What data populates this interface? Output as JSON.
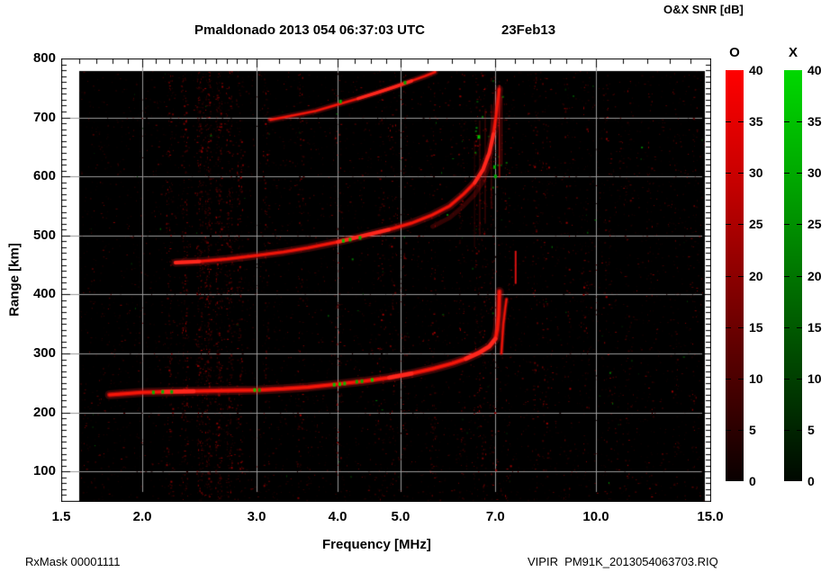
{
  "header": {
    "title": "Pmaldonado 2013 054 06:37:03 UTC",
    "date": "23Feb13",
    "colorbar_title": "O&X SNR [dB]"
  },
  "footer": {
    "left": "RxMask 00001111",
    "right": "VIPIR  PM91K_2013054063703.RIQ"
  },
  "axes": {
    "x": {
      "label": "Frequency [MHz]",
      "scale": "log",
      "min": 1.5,
      "max": 15,
      "tick_labels": [
        "1.5",
        "2.0",
        "3.0",
        "4.0",
        "5.0",
        "7.0",
        "10.0",
        "15.0"
      ],
      "tick_values": [
        1.5,
        2,
        3,
        4,
        5,
        7,
        10,
        15
      ],
      "gridlines": [
        2,
        3,
        4,
        5,
        7,
        10
      ],
      "minor_ticks": [
        1.6,
        1.7,
        1.8,
        1.9,
        2.1,
        2.2,
        2.3,
        2.4,
        2.5,
        2.6,
        2.7,
        2.8,
        2.9,
        3.25,
        3.5,
        3.75,
        4.25,
        4.5,
        4.75,
        5.5,
        6,
        6.5,
        7.5,
        8,
        8.5,
        9,
        9.5,
        11,
        12,
        13,
        14
      ]
    },
    "y": {
      "label": "Range [km]",
      "min": 50,
      "max": 800,
      "tick_labels": [
        "800",
        "700",
        "600",
        "500",
        "400",
        "300",
        "200",
        "100"
      ],
      "tick_values": [
        800,
        700,
        600,
        500,
        400,
        300,
        200,
        100
      ],
      "gridlines": [
        100,
        200,
        300,
        400,
        500,
        600,
        700
      ],
      "minor_step": 10
    }
  },
  "colorbars": {
    "bars": [
      {
        "label": "O",
        "min": 0,
        "max": 40,
        "tick_step": 5,
        "tick_labels": [
          "40",
          "35",
          "30",
          "25",
          "20",
          "15",
          "10",
          "5",
          "0"
        ],
        "color_top": "#ff0000",
        "color_bottom": "#090000"
      },
      {
        "label": "X",
        "min": 0,
        "max": 40,
        "tick_step": 5,
        "tick_labels": [
          "40",
          "35",
          "30",
          "25",
          "20",
          "15",
          "10",
          "5",
          "0"
        ],
        "color_top": "#00d800",
        "color_bottom": "#000800"
      }
    ]
  },
  "chart_data": {
    "type": "heatmap",
    "title": "Pmaldonado 2013 054 06:37:03 UTC 23Feb13",
    "xlabel": "Frequency [MHz]",
    "ylabel": "Range [km]",
    "xscale": "log",
    "xlim": [
      1.5,
      15
    ],
    "ylim": [
      50,
      800
    ],
    "grid": true,
    "background": "#000000",
    "data_extent": {
      "freq_mhz": [
        1.6,
        14.85
      ],
      "range_km": [
        50,
        780
      ]
    },
    "snr_scale_db": [
      0,
      40
    ],
    "o_mode_color": "red",
    "x_mode_color": "green",
    "traces": [
      {
        "name": "F-layer 1-hop O-mode",
        "points": [
          [
            1.78,
            230
          ],
          [
            1.9,
            232
          ],
          [
            2.0,
            234
          ],
          [
            2.15,
            235
          ],
          [
            2.4,
            236
          ],
          [
            2.7,
            237
          ],
          [
            3.0,
            238
          ],
          [
            3.3,
            240
          ],
          [
            3.6,
            243
          ],
          [
            4.0,
            248
          ],
          [
            4.4,
            253
          ],
          [
            4.8,
            259
          ],
          [
            5.2,
            266
          ],
          [
            5.6,
            274
          ],
          [
            6.0,
            283
          ],
          [
            6.3,
            291
          ],
          [
            6.6,
            301
          ],
          [
            6.85,
            312
          ],
          [
            7.0,
            325
          ],
          [
            7.05,
            342
          ],
          [
            7.08,
            365
          ],
          [
            7.1,
            405
          ]
        ],
        "bright_segments": [
          [
            2.02,
            2.45
          ],
          [
            4.5,
            5.3
          ],
          [
            6.2,
            7.03
          ]
        ],
        "glow": 10,
        "mid": 5.5,
        "core": 3
      },
      {
        "name": "F-layer 1-hop X-mode cusp",
        "points": [
          [
            7.15,
            300
          ],
          [
            7.17,
            322
          ],
          [
            7.2,
            350
          ],
          [
            7.25,
            378
          ],
          [
            7.28,
            392
          ]
        ],
        "bright_segments": [],
        "glow": 5,
        "mid": 3,
        "core": 1.6
      },
      {
        "name": "F-layer 2-hop",
        "points": [
          [
            2.25,
            454
          ],
          [
            2.45,
            456
          ],
          [
            2.7,
            460
          ],
          [
            3.0,
            466
          ],
          [
            3.3,
            472
          ],
          [
            3.6,
            479
          ],
          [
            4.0,
            489
          ],
          [
            4.4,
            500
          ],
          [
            4.8,
            510
          ],
          [
            5.2,
            521
          ],
          [
            5.6,
            535
          ],
          [
            5.95,
            550
          ],
          [
            6.25,
            570
          ],
          [
            6.5,
            589
          ],
          [
            6.7,
            612
          ],
          [
            6.85,
            640
          ],
          [
            6.95,
            672
          ],
          [
            7.02,
            705
          ],
          [
            7.06,
            728
          ],
          [
            7.09,
            748
          ]
        ],
        "bright_segments": [
          [
            2.25,
            2.65
          ],
          [
            3.9,
            5.0
          ],
          [
            6.4,
            7.0
          ]
        ],
        "glow": 9,
        "mid": 4.5,
        "core": 2.4
      },
      {
        "name": "F-layer 3-hop",
        "points": [
          [
            3.15,
            696
          ],
          [
            3.4,
            703
          ],
          [
            3.7,
            711
          ],
          [
            4.0,
            722
          ],
          [
            4.3,
            732
          ],
          [
            4.6,
            742
          ],
          [
            4.9,
            752
          ],
          [
            5.2,
            762
          ],
          [
            5.45,
            770
          ],
          [
            5.65,
            777
          ]
        ],
        "bright_segments": [
          [
            4.25,
            5.3
          ]
        ],
        "glow": 7,
        "mid": 3.5,
        "core": 2
      }
    ],
    "x_mode_marks": [
      [
        2.08,
        234
      ],
      [
        2.15,
        235
      ],
      [
        2.22,
        235
      ],
      [
        2.98,
        238
      ],
      [
        3.03,
        238
      ],
      [
        3.95,
        247
      ],
      [
        4.03,
        248
      ],
      [
        4.1,
        249
      ],
      [
        4.28,
        252
      ],
      [
        4.36,
        253
      ],
      [
        4.52,
        255
      ],
      [
        4.08,
        491
      ],
      [
        4.18,
        493
      ],
      [
        4.33,
        496
      ],
      [
        4.04,
        727
      ],
      [
        5.08,
        759
      ],
      [
        7.0,
        600
      ],
      [
        6.98,
        616
      ],
      [
        6.6,
        667
      ]
    ],
    "vertical_streaks": [
      {
        "f": 7.52,
        "r0": 418,
        "r1": 474,
        "w": 2,
        "a": 0.85
      },
      {
        "f": 7.1,
        "r0": 598,
        "r1": 755,
        "w": 2,
        "a": 0.5
      },
      {
        "f": 7.16,
        "r0": 620,
        "r1": 735,
        "w": 1.5,
        "a": 0.3
      },
      {
        "f": 6.62,
        "r0": 500,
        "r1": 695,
        "w": 2,
        "a": 0.16
      },
      {
        "f": 6.75,
        "r0": 520,
        "r1": 712,
        "w": 2,
        "a": 0.16
      },
      {
        "f": 6.9,
        "r0": 545,
        "r1": 722,
        "w": 2,
        "a": 0.18
      },
      {
        "f": 6.5,
        "r0": 480,
        "r1": 660,
        "w": 1.5,
        "a": 0.12
      }
    ],
    "noise_columns": [
      [
        2.2,
        0.45
      ],
      [
        2.32,
        0.6
      ],
      [
        2.45,
        0.85
      ],
      [
        2.52,
        1.0
      ],
      [
        2.62,
        0.9
      ],
      [
        2.72,
        0.7
      ],
      [
        2.82,
        0.45
      ],
      [
        3.1,
        0.3
      ],
      [
        3.5,
        0.3
      ],
      [
        4.0,
        0.28
      ],
      [
        4.65,
        0.28
      ],
      [
        4.85,
        0.25
      ],
      [
        5.05,
        0.2
      ],
      [
        5.6,
        0.2
      ],
      [
        6.2,
        0.22
      ],
      [
        6.55,
        0.3
      ],
      [
        6.7,
        0.3
      ],
      [
        6.95,
        0.25
      ],
      [
        7.3,
        0.15
      ],
      [
        8.05,
        0.25
      ],
      [
        8.35,
        0.2
      ],
      [
        9.0,
        0.18
      ],
      [
        9.65,
        0.15
      ],
      [
        10.4,
        0.14
      ],
      [
        11.2,
        0.13
      ],
      [
        12.1,
        0.13
      ],
      [
        13.2,
        0.12
      ],
      [
        14.2,
        0.12
      ]
    ]
  },
  "style": {
    "grid_color": "#9a9a9a",
    "frame_color": "#000000"
  }
}
